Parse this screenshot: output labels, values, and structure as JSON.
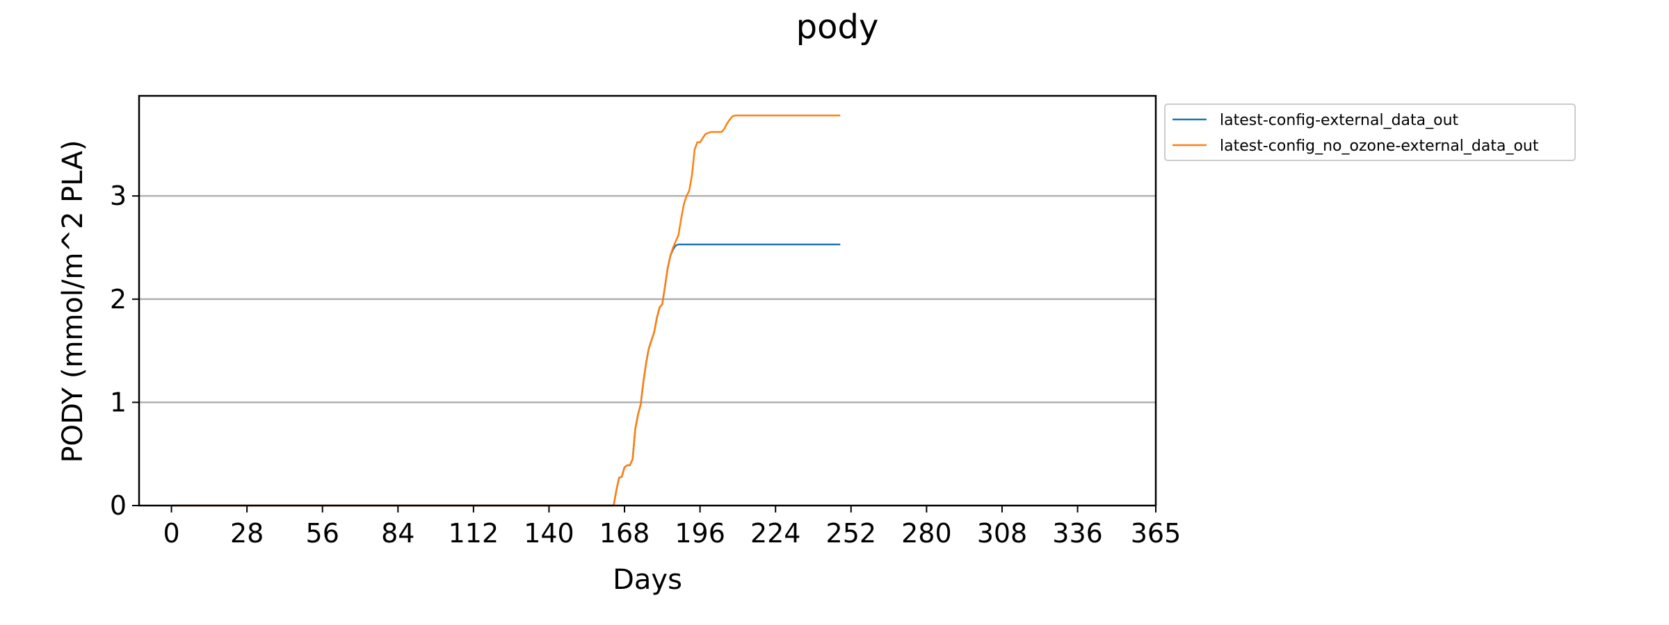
{
  "chart_data": {
    "type": "line",
    "title": "pody",
    "xlabel": "Days",
    "ylabel": "PODY (mmol/m^2 PLA)",
    "xlim": [
      -12,
      365
    ],
    "ylim": [
      0,
      3.97
    ],
    "xticks": [
      0,
      28,
      56,
      84,
      112,
      140,
      168,
      196,
      224,
      252,
      280,
      308,
      336,
      365
    ],
    "yticks": [
      0,
      1,
      2,
      3
    ],
    "grid": "horizontal",
    "legend_position": "outside-right-top",
    "series": [
      {
        "name": "latest-config-external_data_out",
        "color": "#1f77b4",
        "x": [
          0,
          164,
          165,
          166,
          167,
          168,
          169,
          170,
          171,
          172,
          173,
          174,
          175,
          176,
          177,
          178,
          179,
          180,
          181,
          182,
          183,
          184,
          185,
          186,
          187,
          188,
          189,
          190,
          191,
          248
        ],
        "y": [
          0,
          0,
          0.15,
          0.27,
          0.28,
          0.37,
          0.39,
          0.39,
          0.45,
          0.74,
          0.88,
          0.98,
          1.2,
          1.38,
          1.52,
          1.6,
          1.68,
          1.82,
          1.92,
          1.95,
          2.12,
          2.3,
          2.42,
          2.48,
          2.52,
          2.53,
          2.53,
          2.53,
          2.53,
          2.53
        ]
      },
      {
        "name": "latest-config_no_ozone-external_data_out",
        "color": "#ff7f0e",
        "x": [
          0,
          164,
          165,
          166,
          167,
          168,
          169,
          170,
          171,
          172,
          173,
          174,
          175,
          176,
          177,
          178,
          179,
          180,
          181,
          182,
          183,
          184,
          185,
          186,
          187,
          188,
          189,
          190,
          191,
          192,
          193,
          194,
          195,
          196,
          197,
          198,
          199,
          200,
          201,
          202,
          203,
          204,
          205,
          206,
          207,
          208,
          209,
          210,
          211,
          212,
          213,
          214,
          215,
          216,
          217,
          218,
          248
        ],
        "y": [
          0,
          0,
          0.15,
          0.27,
          0.28,
          0.37,
          0.39,
          0.39,
          0.45,
          0.74,
          0.88,
          0.98,
          1.2,
          1.38,
          1.52,
          1.6,
          1.68,
          1.82,
          1.92,
          1.95,
          2.12,
          2.3,
          2.42,
          2.5,
          2.56,
          2.62,
          2.78,
          2.92,
          3.0,
          3.05,
          3.2,
          3.45,
          3.52,
          3.52,
          3.56,
          3.6,
          3.61,
          3.62,
          3.62,
          3.62,
          3.62,
          3.62,
          3.65,
          3.7,
          3.74,
          3.77,
          3.78,
          3.78,
          3.78,
          3.78,
          3.78,
          3.78,
          3.78,
          3.78,
          3.78,
          3.78,
          3.78
        ]
      }
    ]
  }
}
